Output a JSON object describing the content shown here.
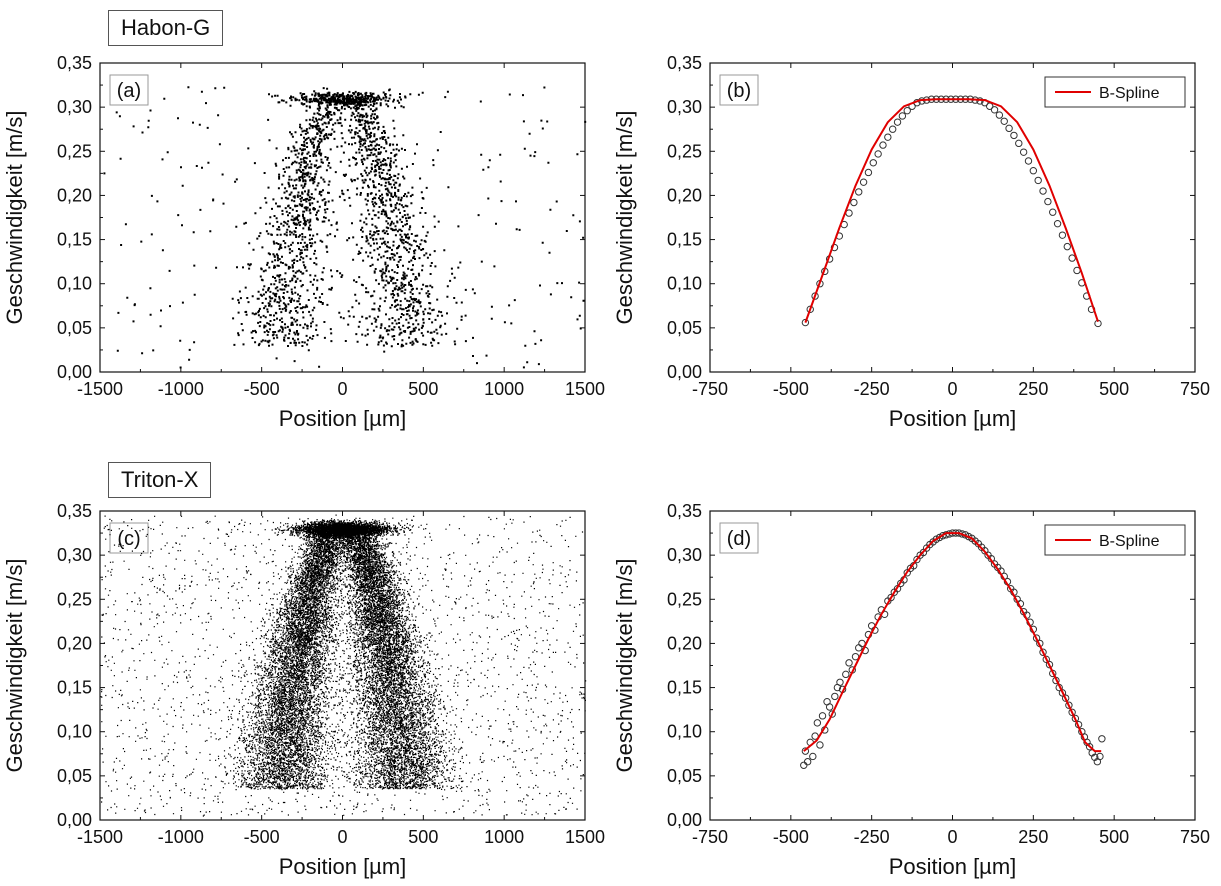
{
  "figure": {
    "labels": {
      "top": "Habon-G",
      "bottom": "Triton-X"
    }
  },
  "chart_data": [
    {
      "id": "a",
      "type": "scatter",
      "panel_label": "(a)",
      "xlabel": "Position [µm]",
      "ylabel": "Geschwindigkeit [m/s]",
      "xlim": [
        -1500,
        1500
      ],
      "ylim": [
        0.0,
        0.35
      ],
      "xticks": [
        -1500,
        -1000,
        -500,
        0,
        500,
        1000,
        1500
      ],
      "xtick_labels": [
        "-1500",
        "-1000",
        "-500",
        "0",
        "500",
        "1000",
        "1500"
      ],
      "yticks": [
        0.0,
        0.05,
        0.1,
        0.15,
        0.2,
        0.25,
        0.3,
        0.35
      ],
      "ytick_labels": [
        "0,00",
        "0,05",
        "0,10",
        "0,15",
        "0,20",
        "0,25",
        "0,30",
        "0,35"
      ],
      "grid": false,
      "point_color": "#000000",
      "point_cloud": {
        "approx_points": 2600,
        "peak_velocity": 0.31,
        "peak_band_x": [
          -400,
          400
        ],
        "wing_centers_x": [
          -330,
          330
        ],
        "edge_velocity": 0.05,
        "edge_x": [
          -520,
          520
        ],
        "background_x": [
          -1500,
          1500
        ]
      }
    },
    {
      "id": "b",
      "type": "line",
      "panel_label": "(b)",
      "xlabel": "Position [µm]",
      "ylabel": "Geschwindigkeit [m/s]",
      "xlim": [
        -750,
        750
      ],
      "ylim": [
        0.0,
        0.35
      ],
      "xticks": [
        -750,
        -500,
        -250,
        0,
        250,
        500,
        750
      ],
      "xtick_labels": [
        "-750",
        "-500",
        "-250",
        "0",
        "250",
        "500",
        "750"
      ],
      "yticks": [
        0.0,
        0.05,
        0.1,
        0.15,
        0.2,
        0.25,
        0.3,
        0.35
      ],
      "ytick_labels": [
        "0,00",
        "0,05",
        "0,10",
        "0,15",
        "0,20",
        "0,25",
        "0,30",
        "0,35"
      ],
      "grid": false,
      "legend": {
        "entries": [
          "B-Spline"
        ],
        "placement": "top-right"
      },
      "series": [
        {
          "name": "B-Spline",
          "color": "#e00000",
          "x": [
            -455,
            -400,
            -350,
            -300,
            -250,
            -200,
            -150,
            -100,
            -50,
            0,
            50,
            100,
            150,
            200,
            250,
            300,
            350,
            400,
            450
          ],
          "y": [
            0.056,
            0.112,
            0.163,
            0.211,
            0.252,
            0.283,
            0.301,
            0.308,
            0.309,
            0.309,
            0.309,
            0.308,
            0.301,
            0.283,
            0.252,
            0.211,
            0.163,
            0.112,
            0.057
          ]
        }
      ],
      "markers": {
        "style": "open-circle",
        "x": [
          -455,
          -440,
          -425,
          -410,
          -395,
          -380,
          -365,
          -350,
          -335,
          -320,
          -305,
          -290,
          -275,
          -260,
          -245,
          -230,
          -215,
          -200,
          -185,
          -170,
          -155,
          -140,
          -125,
          -110,
          -95,
          -80,
          -65,
          -50,
          -35,
          -20,
          -5,
          10,
          25,
          40,
          55,
          70,
          85,
          100,
          115,
          130,
          145,
          160,
          175,
          190,
          205,
          220,
          235,
          250,
          265,
          280,
          295,
          310,
          325,
          340,
          355,
          370,
          385,
          400,
          415,
          430,
          450
        ],
        "y": [
          0.056,
          0.071,
          0.086,
          0.1,
          0.114,
          0.128,
          0.141,
          0.154,
          0.167,
          0.18,
          0.192,
          0.204,
          0.215,
          0.226,
          0.237,
          0.247,
          0.257,
          0.266,
          0.275,
          0.283,
          0.29,
          0.296,
          0.301,
          0.305,
          0.307,
          0.308,
          0.309,
          0.309,
          0.309,
          0.309,
          0.309,
          0.309,
          0.309,
          0.309,
          0.309,
          0.308,
          0.307,
          0.305,
          0.301,
          0.297,
          0.291,
          0.284,
          0.276,
          0.268,
          0.259,
          0.249,
          0.239,
          0.228,
          0.217,
          0.205,
          0.193,
          0.181,
          0.168,
          0.155,
          0.142,
          0.129,
          0.115,
          0.101,
          0.086,
          0.071,
          0.055
        ]
      }
    },
    {
      "id": "c",
      "type": "scatter",
      "panel_label": "(c)",
      "xlabel": "Position [µm]",
      "ylabel": "Geschwindigkeit [m/s]",
      "xlim": [
        -1500,
        1500
      ],
      "ylim": [
        0.0,
        0.35
      ],
      "xticks": [
        -1500,
        -1000,
        -500,
        0,
        500,
        1000,
        1500
      ],
      "xtick_labels": [
        "-1500",
        "-1000",
        "-500",
        "0",
        "500",
        "1000",
        "1500"
      ],
      "yticks": [
        0.0,
        0.05,
        0.1,
        0.15,
        0.2,
        0.25,
        0.3,
        0.35
      ],
      "ytick_labels": [
        "0,00",
        "0,05",
        "0,10",
        "0,15",
        "0,20",
        "0,25",
        "0,30",
        "0,35"
      ],
      "grid": false,
      "point_color": "#000000",
      "point_cloud": {
        "approx_points": 22000,
        "peak_velocity": 0.33,
        "peak_band_x": [
          -350,
          350
        ],
        "wing_centers_x": [
          -300,
          300
        ],
        "edge_velocity": 0.06,
        "edge_x": [
          -500,
          500
        ],
        "background_x": [
          -1500,
          1500
        ]
      }
    },
    {
      "id": "d",
      "type": "line",
      "panel_label": "(d)",
      "xlabel": "Position [µm]",
      "ylabel": "Geschwindigkeit [m/s]",
      "xlim": [
        -750,
        750
      ],
      "ylim": [
        0.0,
        0.35
      ],
      "xticks": [
        -750,
        -500,
        -250,
        0,
        250,
        500,
        750
      ],
      "xtick_labels": [
        "-750",
        "-500",
        "-250",
        "0",
        "250",
        "500",
        "750"
      ],
      "yticks": [
        0.0,
        0.05,
        0.1,
        0.15,
        0.2,
        0.25,
        0.3,
        0.35
      ],
      "ytick_labels": [
        "0,00",
        "0,05",
        "0,10",
        "0,15",
        "0,20",
        "0,25",
        "0,30",
        "0,35"
      ],
      "grid": false,
      "legend": {
        "entries": [
          "B-Spline"
        ],
        "placement": "top-right"
      },
      "series": [
        {
          "name": "B-Spline",
          "color": "#e00000",
          "x": [
            -460,
            -420,
            -380,
            -340,
            -300,
            -260,
            -220,
            -180,
            -140,
            -100,
            -60,
            -20,
            20,
            60,
            100,
            140,
            180,
            220,
            260,
            300,
            340,
            380,
            410,
            440,
            460
          ],
          "y": [
            0.078,
            0.09,
            0.114,
            0.145,
            0.175,
            0.205,
            0.233,
            0.258,
            0.281,
            0.3,
            0.316,
            0.325,
            0.325,
            0.319,
            0.304,
            0.284,
            0.261,
            0.234,
            0.205,
            0.175,
            0.145,
            0.114,
            0.088,
            0.078,
            0.078
          ]
        }
      ],
      "markers": {
        "style": "open-circle",
        "x": [
          -460,
          -455,
          -448,
          -440,
          -432,
          -425,
          -418,
          -410,
          -402,
          -395,
          -388,
          -380,
          -372,
          -364,
          -356,
          -348,
          -340,
          -330,
          -320,
          -310,
          -300,
          -290,
          -280,
          -270,
          -260,
          -250,
          -240,
          -230,
          -220,
          -210,
          -200,
          -190,
          -180,
          -170,
          -160,
          -150,
          -140,
          -130,
          -120,
          -110,
          -100,
          -90,
          -80,
          -70,
          -60,
          -50,
          -40,
          -30,
          -20,
          -10,
          0,
          10,
          20,
          30,
          40,
          50,
          60,
          70,
          80,
          90,
          100,
          110,
          120,
          130,
          140,
          150,
          160,
          170,
          180,
          190,
          200,
          210,
          220,
          230,
          240,
          250,
          260,
          270,
          280,
          290,
          300,
          310,
          320,
          330,
          340,
          350,
          360,
          370,
          380,
          390,
          400,
          408,
          416,
          424,
          432,
          440,
          448,
          456,
          462
        ],
        "y": [
          0.062,
          0.078,
          0.066,
          0.088,
          0.072,
          0.095,
          0.11,
          0.085,
          0.118,
          0.102,
          0.134,
          0.128,
          0.12,
          0.14,
          0.15,
          0.156,
          0.148,
          0.165,
          0.178,
          0.17,
          0.185,
          0.195,
          0.2,
          0.192,
          0.21,
          0.22,
          0.215,
          0.23,
          0.238,
          0.233,
          0.248,
          0.252,
          0.258,
          0.262,
          0.268,
          0.272,
          0.28,
          0.285,
          0.288,
          0.295,
          0.3,
          0.303,
          0.308,
          0.312,
          0.315,
          0.318,
          0.32,
          0.322,
          0.323,
          0.324,
          0.325,
          0.325,
          0.325,
          0.324,
          0.323,
          0.321,
          0.319,
          0.316,
          0.313,
          0.309,
          0.305,
          0.3,
          0.296,
          0.29,
          0.286,
          0.282,
          0.276,
          0.27,
          0.262,
          0.258,
          0.25,
          0.245,
          0.236,
          0.232,
          0.224,
          0.216,
          0.206,
          0.2,
          0.19,
          0.182,
          0.176,
          0.166,
          0.158,
          0.15,
          0.144,
          0.138,
          0.13,
          0.122,
          0.115,
          0.108,
          0.1,
          0.094,
          0.088,
          0.083,
          0.076,
          0.071,
          0.066,
          0.072,
          0.092
        ]
      }
    }
  ]
}
